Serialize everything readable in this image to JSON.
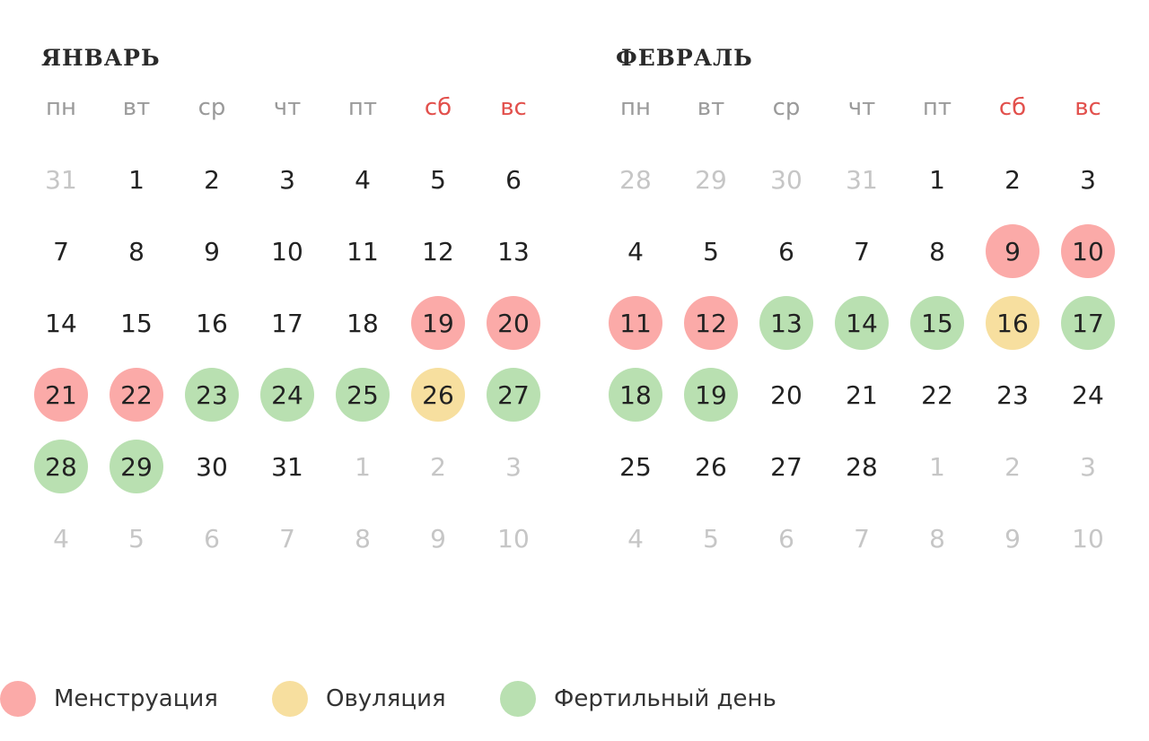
{
  "colors": {
    "menstruation": "#fbaaa8",
    "ovulation": "#f7df9f",
    "fertile": "#b9e0b1",
    "weekend_text": "#e2504c",
    "other_month_text": "#c6c6c6",
    "weekday_text": "#9a9a9a"
  },
  "weekdays": [
    "пн",
    "вт",
    "ср",
    "чт",
    "пт",
    "сб",
    "вс"
  ],
  "months": [
    {
      "title": "ЯНВАРЬ",
      "weeks": [
        [
          {
            "d": "31",
            "o": true
          },
          {
            "d": "1"
          },
          {
            "d": "2"
          },
          {
            "d": "3"
          },
          {
            "d": "4"
          },
          {
            "d": "5"
          },
          {
            "d": "6"
          }
        ],
        [
          {
            "d": "7"
          },
          {
            "d": "8"
          },
          {
            "d": "9"
          },
          {
            "d": "10"
          },
          {
            "d": "11"
          },
          {
            "d": "12"
          },
          {
            "d": "13"
          }
        ],
        [
          {
            "d": "14"
          },
          {
            "d": "15"
          },
          {
            "d": "16"
          },
          {
            "d": "17"
          },
          {
            "d": "18"
          },
          {
            "d": "19",
            "s": "menstruation"
          },
          {
            "d": "20",
            "s": "menstruation"
          }
        ],
        [
          {
            "d": "21",
            "s": "menstruation"
          },
          {
            "d": "22",
            "s": "menstruation"
          },
          {
            "d": "23",
            "s": "fertile"
          },
          {
            "d": "24",
            "s": "fertile"
          },
          {
            "d": "25",
            "s": "fertile"
          },
          {
            "d": "26",
            "s": "ovulation"
          },
          {
            "d": "27",
            "s": "fertile"
          }
        ],
        [
          {
            "d": "28",
            "s": "fertile"
          },
          {
            "d": "29",
            "s": "fertile"
          },
          {
            "d": "30"
          },
          {
            "d": "31"
          },
          {
            "d": "1",
            "o": true
          },
          {
            "d": "2",
            "o": true
          },
          {
            "d": "3",
            "o": true
          }
        ],
        [
          {
            "d": "4",
            "o": true
          },
          {
            "d": "5",
            "o": true
          },
          {
            "d": "6",
            "o": true
          },
          {
            "d": "7",
            "o": true
          },
          {
            "d": "8",
            "o": true
          },
          {
            "d": "9",
            "o": true
          },
          {
            "d": "10",
            "o": true
          }
        ]
      ]
    },
    {
      "title": "ФЕВРАЛЬ",
      "weeks": [
        [
          {
            "d": "28",
            "o": true
          },
          {
            "d": "29",
            "o": true
          },
          {
            "d": "30",
            "o": true
          },
          {
            "d": "31",
            "o": true
          },
          {
            "d": "1"
          },
          {
            "d": "2"
          },
          {
            "d": "3"
          }
        ],
        [
          {
            "d": "4"
          },
          {
            "d": "5"
          },
          {
            "d": "6"
          },
          {
            "d": "7"
          },
          {
            "d": "8"
          },
          {
            "d": "9",
            "s": "menstruation"
          },
          {
            "d": "10",
            "s": "menstruation"
          }
        ],
        [
          {
            "d": "11",
            "s": "menstruation"
          },
          {
            "d": "12",
            "s": "menstruation"
          },
          {
            "d": "13",
            "s": "fertile"
          },
          {
            "d": "14",
            "s": "fertile"
          },
          {
            "d": "15",
            "s": "fertile"
          },
          {
            "d": "16",
            "s": "ovulation"
          },
          {
            "d": "17",
            "s": "fertile"
          }
        ],
        [
          {
            "d": "18",
            "s": "fertile"
          },
          {
            "d": "19",
            "s": "fertile"
          },
          {
            "d": "20"
          },
          {
            "d": "21"
          },
          {
            "d": "22"
          },
          {
            "d": "23"
          },
          {
            "d": "24"
          }
        ],
        [
          {
            "d": "25"
          },
          {
            "d": "26"
          },
          {
            "d": "27"
          },
          {
            "d": "28"
          },
          {
            "d": "1",
            "o": true
          },
          {
            "d": "2",
            "o": true
          },
          {
            "d": "3",
            "o": true
          }
        ],
        [
          {
            "d": "4",
            "o": true
          },
          {
            "d": "5",
            "o": true
          },
          {
            "d": "6",
            "o": true
          },
          {
            "d": "7",
            "o": true
          },
          {
            "d": "8",
            "o": true
          },
          {
            "d": "9",
            "o": true
          },
          {
            "d": "10",
            "o": true
          }
        ]
      ]
    }
  ],
  "legend": {
    "menstruation": "Менструация",
    "ovulation": "Овуляция",
    "fertile": "Фертильный день"
  }
}
